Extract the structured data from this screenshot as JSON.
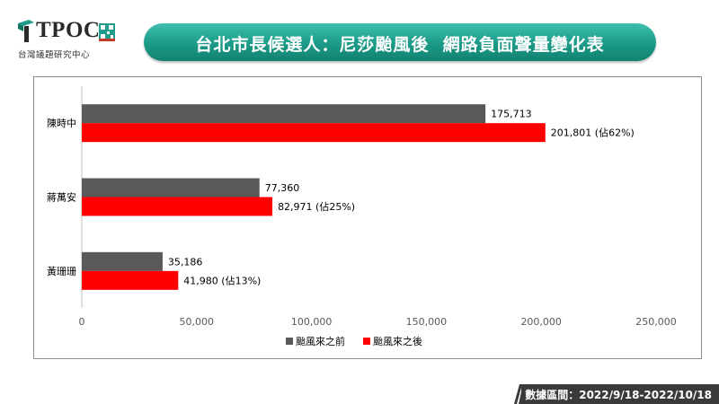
{
  "logo": {
    "name": "TPOC",
    "subtitle": "台灣議題研究中心"
  },
  "title": "台北市長候選人：尼莎颱風後  網路負面聲量變化表",
  "footer": {
    "date_range": "數據區間：2022/9/18-2022/10/18"
  },
  "colors": {
    "before": "#595959",
    "after": "#ff0000",
    "banner": "#1d9d8a"
  },
  "chart_data": {
    "type": "bar",
    "orientation": "horizontal",
    "categories": [
      "陳時中",
      "蔣萬安",
      "黃珊珊"
    ],
    "series": [
      {
        "name": "颱風來之前",
        "color": "#595959",
        "values": [
          175713,
          77360,
          35186
        ],
        "labels": [
          "175,713",
          "77,360",
          "35,186"
        ]
      },
      {
        "name": "颱風來之後",
        "color": "#ff0000",
        "values": [
          201801,
          82971,
          41980
        ],
        "labels": [
          "201,801 (佔62%)",
          "82,971 (佔25%)",
          "41,980 (佔13%)"
        ]
      }
    ],
    "xlim": [
      0,
      250000
    ],
    "xticks": [
      0,
      50000,
      100000,
      150000,
      200000,
      250000
    ],
    "xtick_labels": [
      "0",
      "50,000",
      "100,000",
      "150,000",
      "200,000",
      "250,000"
    ],
    "grid": false,
    "legend_position": "bottom"
  }
}
